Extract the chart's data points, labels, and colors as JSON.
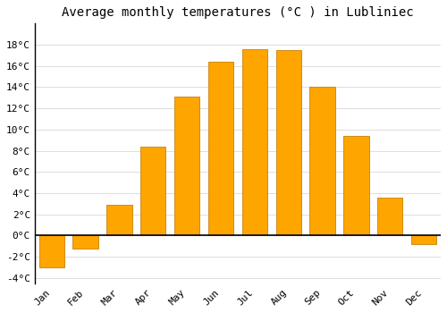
{
  "title": "Average monthly temperatures (°C ) in Lubliniec",
  "months": [
    "Jan",
    "Feb",
    "Mar",
    "Apr",
    "May",
    "Jun",
    "Jul",
    "Aug",
    "Sep",
    "Oct",
    "Nov",
    "Dec"
  ],
  "values": [
    -3.0,
    -1.2,
    2.9,
    8.4,
    13.1,
    16.4,
    17.6,
    17.5,
    14.0,
    9.4,
    3.6,
    -0.8
  ],
  "bar_color": "#FFA500",
  "bar_edge_color": "#C8820A",
  "ylim": [
    -4.5,
    20
  ],
  "yticks": [
    -4,
    -2,
    0,
    2,
    4,
    6,
    8,
    10,
    12,
    14,
    16,
    18
  ],
  "background_color": "#ffffff",
  "grid_color": "#dddddd",
  "title_fontsize": 10,
  "tick_fontsize": 8,
  "bar_width": 0.75
}
